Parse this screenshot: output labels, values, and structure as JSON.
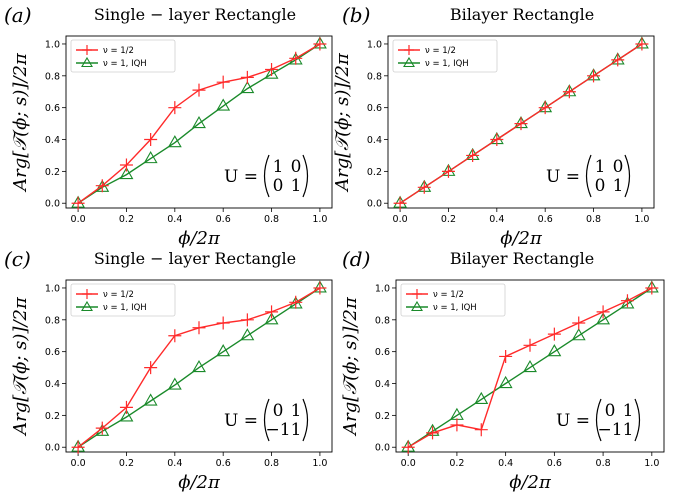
{
  "colors": {
    "nu_half": "#ff2a2a",
    "iqh": "#1a8a2a"
  },
  "chart_data": [
    {
      "type": "line",
      "panel_tag": "(a)",
      "title": "Single − layer Rectangle",
      "xlabel": "ϕ/2π",
      "ylabel": "Arg[𝒯(ϕ; s)]/2π",
      "xlim": [
        -0.05,
        1.05
      ],
      "ylim": [
        -0.03,
        1.05
      ],
      "xticks": [
        "0.0",
        "0.2",
        "0.4",
        "0.6",
        "0.8",
        "1.0"
      ],
      "yticks": [
        "0.0",
        "0.2",
        "0.4",
        "0.6",
        "0.8",
        "1.0"
      ],
      "x": [
        0.0,
        0.1,
        0.2,
        0.3,
        0.4,
        0.5,
        0.6,
        0.7,
        0.8,
        0.9,
        1.0
      ],
      "series": [
        {
          "name": "ν = 1/2",
          "marker": "plus",
          "values": [
            0.0,
            0.11,
            0.24,
            0.4,
            0.6,
            0.71,
            0.76,
            0.79,
            0.84,
            0.91,
            1.0
          ]
        },
        {
          "name": "ν = 1, IQH",
          "marker": "triangle",
          "values": [
            0.0,
            0.1,
            0.18,
            0.28,
            0.38,
            0.5,
            0.61,
            0.72,
            0.81,
            0.9,
            1.0
          ]
        }
      ],
      "legend_loc": "top-left",
      "matrix": {
        "lhs": "U =",
        "rows": [
          [
            "1",
            "0"
          ],
          [
            "0",
            "1"
          ]
        ]
      }
    },
    {
      "type": "line",
      "panel_tag": "(b)",
      "title": "Bilayer Rectangle",
      "xlabel": "ϕ/2π",
      "ylabel": "Arg[𝒯(ϕ; s)]/2π",
      "xlim": [
        -0.05,
        1.05
      ],
      "ylim": [
        -0.03,
        1.05
      ],
      "xticks": [
        "0.0",
        "0.2",
        "0.4",
        "0.6",
        "0.8",
        "1.0"
      ],
      "yticks": [
        "0.0",
        "0.2",
        "0.4",
        "0.6",
        "0.8",
        "1.0"
      ],
      "x": [
        0.0,
        0.1,
        0.2,
        0.3,
        0.4,
        0.5,
        0.6,
        0.7,
        0.8,
        0.9,
        1.0
      ],
      "series": [
        {
          "name": "ν = 1/2",
          "marker": "plus",
          "values": [
            0.0,
            0.1,
            0.2,
            0.3,
            0.4,
            0.5,
            0.6,
            0.7,
            0.8,
            0.9,
            1.0
          ]
        },
        {
          "name": "ν = 1, IQH",
          "marker": "triangle",
          "values": [
            0.0,
            0.1,
            0.2,
            0.3,
            0.4,
            0.5,
            0.6,
            0.7,
            0.8,
            0.9,
            1.0
          ]
        }
      ],
      "legend_loc": "top-left",
      "matrix": {
        "lhs": "U =",
        "rows": [
          [
            "1",
            "0"
          ],
          [
            "0",
            "1"
          ]
        ]
      }
    },
    {
      "type": "line",
      "panel_tag": "(c)",
      "title": "Single − layer Rectangle",
      "xlabel": "ϕ/2π",
      "ylabel": "Arg[𝒯(ϕ; s)]/2π",
      "xlim": [
        -0.05,
        1.05
      ],
      "ylim": [
        -0.03,
        1.05
      ],
      "xticks": [
        "0.0",
        "0.2",
        "0.4",
        "0.6",
        "0.8",
        "1.0"
      ],
      "yticks": [
        "0.0",
        "0.2",
        "0.4",
        "0.6",
        "0.8",
        "1.0"
      ],
      "x": [
        0.0,
        0.1,
        0.2,
        0.3,
        0.4,
        0.5,
        0.6,
        0.7,
        0.8,
        0.9,
        1.0
      ],
      "series": [
        {
          "name": "ν = 1/2",
          "marker": "plus",
          "values": [
            0.0,
            0.12,
            0.25,
            0.5,
            0.7,
            0.75,
            0.78,
            0.8,
            0.85,
            0.91,
            1.0
          ]
        },
        {
          "name": "ν = 1, IQH",
          "marker": "triangle",
          "values": [
            0.0,
            0.1,
            0.19,
            0.29,
            0.39,
            0.5,
            0.6,
            0.7,
            0.8,
            0.9,
            1.0
          ]
        }
      ],
      "legend_loc": "top-left",
      "matrix": {
        "lhs": "U =",
        "rows": [
          [
            "0",
            "1"
          ],
          [
            "−1",
            "1"
          ]
        ]
      }
    },
    {
      "type": "line",
      "panel_tag": "(d)",
      "title": "Bilayer Rectangle",
      "xlabel": "ϕ/2π",
      "ylabel": "Arg[𝒯(ϕ; s)]/2π",
      "xlim": [
        -0.05,
        1.05
      ],
      "ylim": [
        -0.03,
        1.05
      ],
      "xticks": [
        "0.0",
        "0.2",
        "0.4",
        "0.6",
        "0.8",
        "1.0"
      ],
      "yticks": [
        "0.0",
        "0.2",
        "0.4",
        "0.6",
        "0.8",
        "1.0"
      ],
      "x": [
        0.0,
        0.1,
        0.2,
        0.3,
        0.4,
        0.5,
        0.6,
        0.7,
        0.8,
        0.9,
        1.0
      ],
      "series": [
        {
          "name": "ν = 1/2",
          "marker": "plus",
          "values": [
            0.0,
            0.09,
            0.14,
            0.11,
            0.57,
            0.64,
            0.71,
            0.78,
            0.85,
            0.92,
            1.0
          ]
        },
        {
          "name": "ν = 1, IQH",
          "marker": "triangle",
          "values": [
            0.0,
            0.1,
            0.2,
            0.3,
            0.4,
            0.5,
            0.6,
            0.7,
            0.8,
            0.9,
            1.0
          ]
        }
      ],
      "legend_loc": "top-left",
      "matrix": {
        "lhs": "U =",
        "rows": [
          [
            "0",
            "1"
          ],
          [
            "−1",
            "1"
          ]
        ]
      }
    }
  ]
}
